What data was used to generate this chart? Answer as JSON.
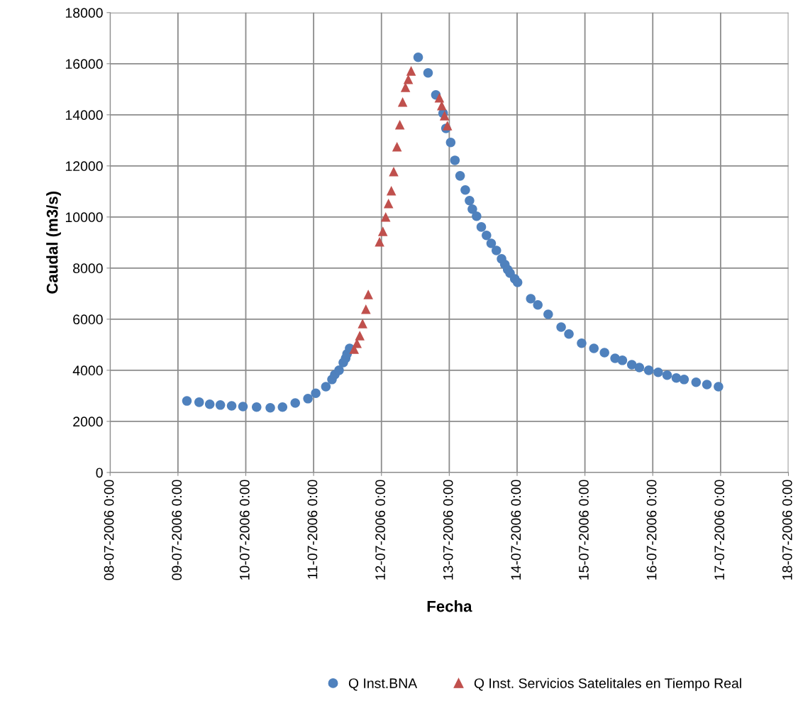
{
  "chart_data": {
    "type": "scatter",
    "xlabel": "Fecha",
    "ylabel": "Caudal (m3/s)",
    "xlim": [
      "2006-07-08",
      "2006-07-18"
    ],
    "xticks": [
      {
        "value": "2006-07-08",
        "label": "08-07-2006 0:00"
      },
      {
        "value": "2006-07-09",
        "label": "09-07-2006 0:00"
      },
      {
        "value": "2006-07-10",
        "label": "10-07-2006 0:00"
      },
      {
        "value": "2006-07-11",
        "label": "11-07-2006 0:00"
      },
      {
        "value": "2006-07-12",
        "label": "12-07-2006 0:00"
      },
      {
        "value": "2006-07-13",
        "label": "13-07-2006 0:00"
      },
      {
        "value": "2006-07-14",
        "label": "14-07-2006 0:00"
      },
      {
        "value": "2006-07-15",
        "label": "15-07-2006 0:00"
      },
      {
        "value": "2006-07-16",
        "label": "16-07-2006 0:00"
      },
      {
        "value": "2006-07-17",
        "label": "17-07-2006 0:00"
      },
      {
        "value": "2006-07-18",
        "label": "18-07-2006 0:00"
      }
    ],
    "ylim": [
      0,
      18000
    ],
    "yticks": [
      0,
      2000,
      4000,
      6000,
      8000,
      10000,
      12000,
      14000,
      16000,
      18000
    ],
    "grid": true,
    "legend": "bottom",
    "series": [
      {
        "name": "Q Inst.BNA",
        "color": "#4f81bd",
        "marker": "circle",
        "x": [
          "2006-07-09T03:10",
          "2006-07-09T07:30",
          "2006-07-09T11:15",
          "2006-07-09T15:00",
          "2006-07-09T19:00",
          "2006-07-09T23:00",
          "2006-07-10T03:50",
          "2006-07-10T08:40",
          "2006-07-10T13:00",
          "2006-07-10T17:30",
          "2006-07-10T22:00",
          "2006-07-11T00:45",
          "2006-07-11T04:20",
          "2006-07-11T06:30",
          "2006-07-11T07:30",
          "2006-07-11T09:00",
          "2006-07-11T10:30",
          "2006-07-11T11:20",
          "2006-07-11T11:50",
          "2006-07-11T12:45",
          "2006-07-12T13:00",
          "2006-07-12T16:30",
          "2006-07-12T19:15",
          "2006-07-12T21:50",
          "2006-07-12T22:50",
          "2006-07-13T00:30",
          "2006-07-13T02:00",
          "2006-07-13T03:50",
          "2006-07-13T05:40",
          "2006-07-13T07:10",
          "2006-07-13T08:10",
          "2006-07-13T09:40",
          "2006-07-13T11:20",
          "2006-07-13T13:10",
          "2006-07-13T14:50",
          "2006-07-13T16:40",
          "2006-07-13T18:30",
          "2006-07-13T19:40",
          "2006-07-13T20:40",
          "2006-07-13T21:30",
          "2006-07-13T23:10",
          "2006-07-14T00:10",
          "2006-07-14T04:50",
          "2006-07-14T07:20",
          "2006-07-14T11:00",
          "2006-07-14T15:35",
          "2006-07-14T18:20",
          "2006-07-14T22:50",
          "2006-07-15T03:10",
          "2006-07-15T06:55",
          "2006-07-15T10:40",
          "2006-07-15T13:15",
          "2006-07-15T16:35",
          "2006-07-15T19:15",
          "2006-07-15T22:35",
          "2006-07-16T01:55",
          "2006-07-16T05:05",
          "2006-07-16T08:20",
          "2006-07-16T11:05",
          "2006-07-16T15:20",
          "2006-07-16T19:10",
          "2006-07-16T23:15"
        ],
        "values": [
          2800,
          2750,
          2670,
          2640,
          2610,
          2580,
          2560,
          2530,
          2560,
          2720,
          2890,
          3100,
          3360,
          3640,
          3830,
          4000,
          4300,
          4470,
          4640,
          4860,
          16250,
          15640,
          14780,
          14060,
          13470,
          12920,
          12220,
          11610,
          11060,
          10640,
          10310,
          10030,
          9610,
          9280,
          8970,
          8690,
          8360,
          8140,
          7940,
          7800,
          7580,
          7440,
          6800,
          6560,
          6190,
          5690,
          5420,
          5060,
          4860,
          4690,
          4470,
          4390,
          4220,
          4110,
          4000,
          3920,
          3810,
          3700,
          3640,
          3530,
          3440,
          3360
        ]
      },
      {
        "name": "Q Inst. Servicios Satelitales en Tiempo Real",
        "color": "#c0504d",
        "marker": "triangle",
        "x": [
          "2006-07-11T14:20",
          "2006-07-11T15:20",
          "2006-07-11T16:20",
          "2006-07-11T17:20",
          "2006-07-11T18:30",
          "2006-07-11T19:20",
          "2006-07-11T23:20",
          "2006-07-12T00:30",
          "2006-07-12T01:30",
          "2006-07-12T02:30",
          "2006-07-12T03:30",
          "2006-07-12T04:20",
          "2006-07-12T05:30",
          "2006-07-12T06:30",
          "2006-07-12T07:30",
          "2006-07-12T08:30",
          "2006-07-12T09:30",
          "2006-07-12T10:30",
          "2006-07-12T20:30",
          "2006-07-12T21:20",
          "2006-07-12T22:20",
          "2006-07-12T23:20"
        ],
        "values": [
          4830,
          5060,
          5360,
          5830,
          6390,
          6970,
          9030,
          9440,
          10000,
          10530,
          11030,
          11780,
          12750,
          13610,
          14500,
          15080,
          15390,
          15720,
          14670,
          14360,
          13970,
          13580
        ]
      }
    ]
  }
}
